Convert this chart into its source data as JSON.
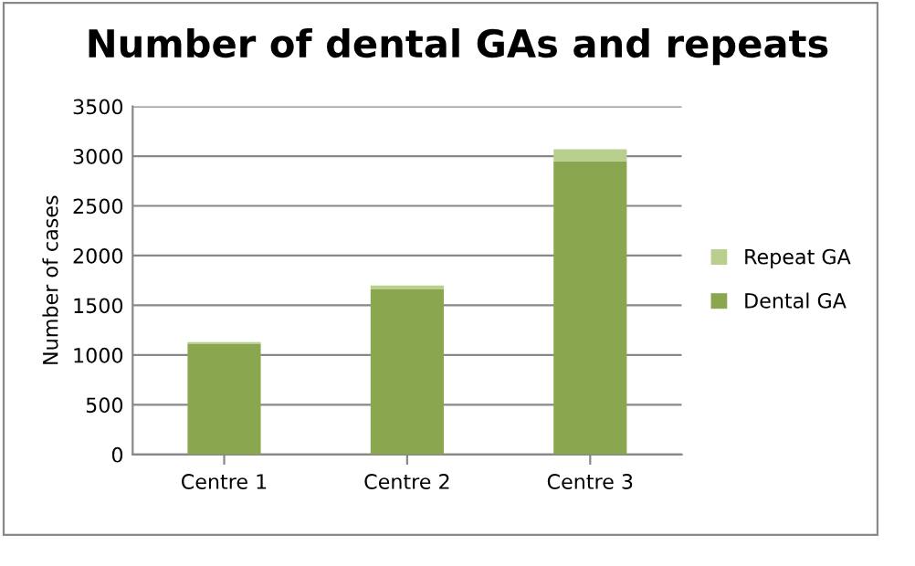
{
  "chart_data": {
    "type": "bar",
    "title": "Number of dental GAs and repeats",
    "ylabel": "Number of cases",
    "categories": [
      "Centre 1",
      "Centre 2",
      "Centre 3"
    ],
    "stacked": true,
    "series": [
      {
        "name": "Dental GA",
        "color": "#8aa64e",
        "values": [
          1110,
          1660,
          2950
        ]
      },
      {
        "name": "Repeat GA",
        "color": "#b9cf8e",
        "values": [
          20,
          40,
          120
        ]
      }
    ],
    "ylim": [
      0,
      3500
    ],
    "yticks": [
      0,
      500,
      1000,
      1500,
      2000,
      2500,
      3000,
      3500
    ],
    "grid": "y",
    "legend": "right"
  }
}
